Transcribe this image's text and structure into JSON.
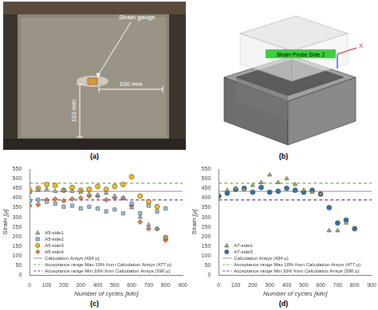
{
  "figure": {
    "panel_labels": [
      "(a)",
      "(b)",
      "(c)",
      "(d)"
    ],
    "photo": {
      "annotations": [
        "Strain gauge",
        "100 mm",
        "110 mm"
      ]
    },
    "cad": {
      "probe_label": "Strain Probe Side 2",
      "axis_label": "X"
    }
  },
  "chart_data": [
    {
      "type": "scatter",
      "x_label": "Number of cycles [kilo]",
      "y_label": "Strain [µ]",
      "xlim": [
        0,
        900
      ],
      "xticks": [
        0,
        100,
        200,
        300,
        400,
        500,
        600,
        700,
        800,
        900
      ],
      "ylim": [
        0,
        550
      ],
      "yticks": [
        0,
        50,
        100,
        150,
        200,
        250,
        300,
        350,
        400,
        450,
        500,
        550
      ],
      "grid": false,
      "legend": "lower left",
      "series": [
        {
          "name": "A5-side1",
          "type": "scatter",
          "marker": "triangle",
          "color": "#9fb3c8",
          "x": [
            0,
            50,
            100,
            150,
            200,
            250,
            300,
            350,
            400,
            450,
            500,
            550,
            600,
            650,
            700,
            750,
            800
          ],
          "values": [
            430,
            440,
            445,
            435,
            440,
            435,
            430,
            420,
            415,
            425,
            410,
            400,
            350,
            300,
            260,
            240,
            190
          ]
        },
        {
          "name": "A5-side2",
          "type": "scatter",
          "marker": "square",
          "color": "#9dc3e6",
          "x": [
            0,
            50,
            100,
            150,
            200,
            250,
            300,
            350,
            400,
            450,
            500,
            550,
            600,
            650,
            700,
            750,
            800
          ],
          "values": [
            385,
            390,
            380,
            370,
            355,
            360,
            345,
            355,
            345,
            330,
            340,
            320,
            370,
            320,
            360,
            330,
            345
          ]
        },
        {
          "name": "A5-side3",
          "type": "scatter",
          "marker": "circle",
          "color": "#ffc000",
          "x": [
            0,
            50,
            100,
            150,
            200,
            250,
            300,
            350,
            400,
            450,
            500,
            550,
            600,
            650,
            700,
            750,
            800
          ],
          "values": [
            440,
            450,
            470,
            465,
            440,
            455,
            440,
            445,
            460,
            445,
            460,
            470,
            510,
            410,
            380,
            355,
            195
          ]
        },
        {
          "name": "A5-side4",
          "type": "scatter",
          "marker": "diamond",
          "color": "#ed7d31",
          "x": [
            0,
            50,
            100,
            150,
            200,
            250,
            300,
            350,
            400,
            450,
            500,
            550,
            600,
            650,
            700,
            750,
            800
          ],
          "values": [
            360,
            365,
            390,
            395,
            385,
            395,
            400,
            410,
            410,
            390,
            400,
            400,
            360,
            275,
            240,
            240,
            180
          ]
        },
        {
          "name": "Calculation Ansys (434 µ)",
          "type": "line",
          "line_style": "solid",
          "color": "#a6a6a6",
          "x": [
            0,
            900
          ],
          "values": [
            434,
            434
          ]
        },
        {
          "name": "Acceptance range Max 10% from Calculation Ansys (477 µ)",
          "type": "line",
          "line_style": "dashed",
          "color": "#70ad47",
          "x": [
            0,
            900
          ],
          "values": [
            477,
            477
          ]
        },
        {
          "name": "Acceptance range Min 10% from Calculation Ansys (390 µ)",
          "type": "line",
          "line_style": "dashed",
          "color": "#7030a0",
          "x": [
            0,
            900
          ],
          "values": [
            390,
            390
          ]
        }
      ]
    },
    {
      "type": "scatter",
      "x_label": "Number of cycles [kilo]",
      "y_label": "Strain [µ]",
      "xlim": [
        0,
        900
      ],
      "xticks": [
        0,
        100,
        200,
        300,
        400,
        500,
        600,
        700,
        800,
        900
      ],
      "ylim": [
        0,
        550
      ],
      "yticks": [
        0,
        50,
        100,
        150,
        200,
        250,
        300,
        350,
        400,
        450,
        500,
        550
      ],
      "grid": false,
      "legend": "lower left",
      "series": [
        {
          "name": "A7-side1",
          "type": "scatter",
          "marker": "triangle",
          "color": "#9bbb59",
          "x": [
            0,
            50,
            100,
            150,
            200,
            250,
            300,
            350,
            400,
            450,
            500,
            550,
            600,
            650,
            700,
            750
          ],
          "values": [
            415,
            440,
            450,
            445,
            465,
            480,
            520,
            480,
            500,
            470,
            440,
            430,
            420,
            230,
            230,
            270
          ]
        },
        {
          "name": "A7-side3",
          "type": "scatter",
          "marker": "circle",
          "color": "#2e75b6",
          "x": [
            0,
            50,
            100,
            150,
            200,
            250,
            300,
            350,
            400,
            450,
            500,
            550,
            600,
            650,
            700,
            750,
            800
          ],
          "values": [
            410,
            425,
            445,
            450,
            430,
            455,
            430,
            435,
            450,
            440,
            430,
            440,
            420,
            350,
            270,
            285,
            240
          ]
        },
        {
          "name": "Calculation Ansys (434 µ)",
          "type": "line",
          "line_style": "solid",
          "color": "#a6a6a6",
          "x": [
            0,
            900
          ],
          "values": [
            434,
            434
          ]
        },
        {
          "name": "Acceptance range Max 10% from Calculation Ansys (477 µ)",
          "type": "line",
          "line_style": "dashed",
          "color": "#70ad47",
          "x": [
            0,
            900
          ],
          "values": [
            477,
            477
          ]
        },
        {
          "name": "Acceptance range Min 10% from Calculation Ansys (390 µ)",
          "type": "line",
          "line_style": "dashed",
          "color": "#7030a0",
          "x": [
            0,
            900
          ],
          "values": [
            390,
            390
          ]
        }
      ]
    }
  ]
}
